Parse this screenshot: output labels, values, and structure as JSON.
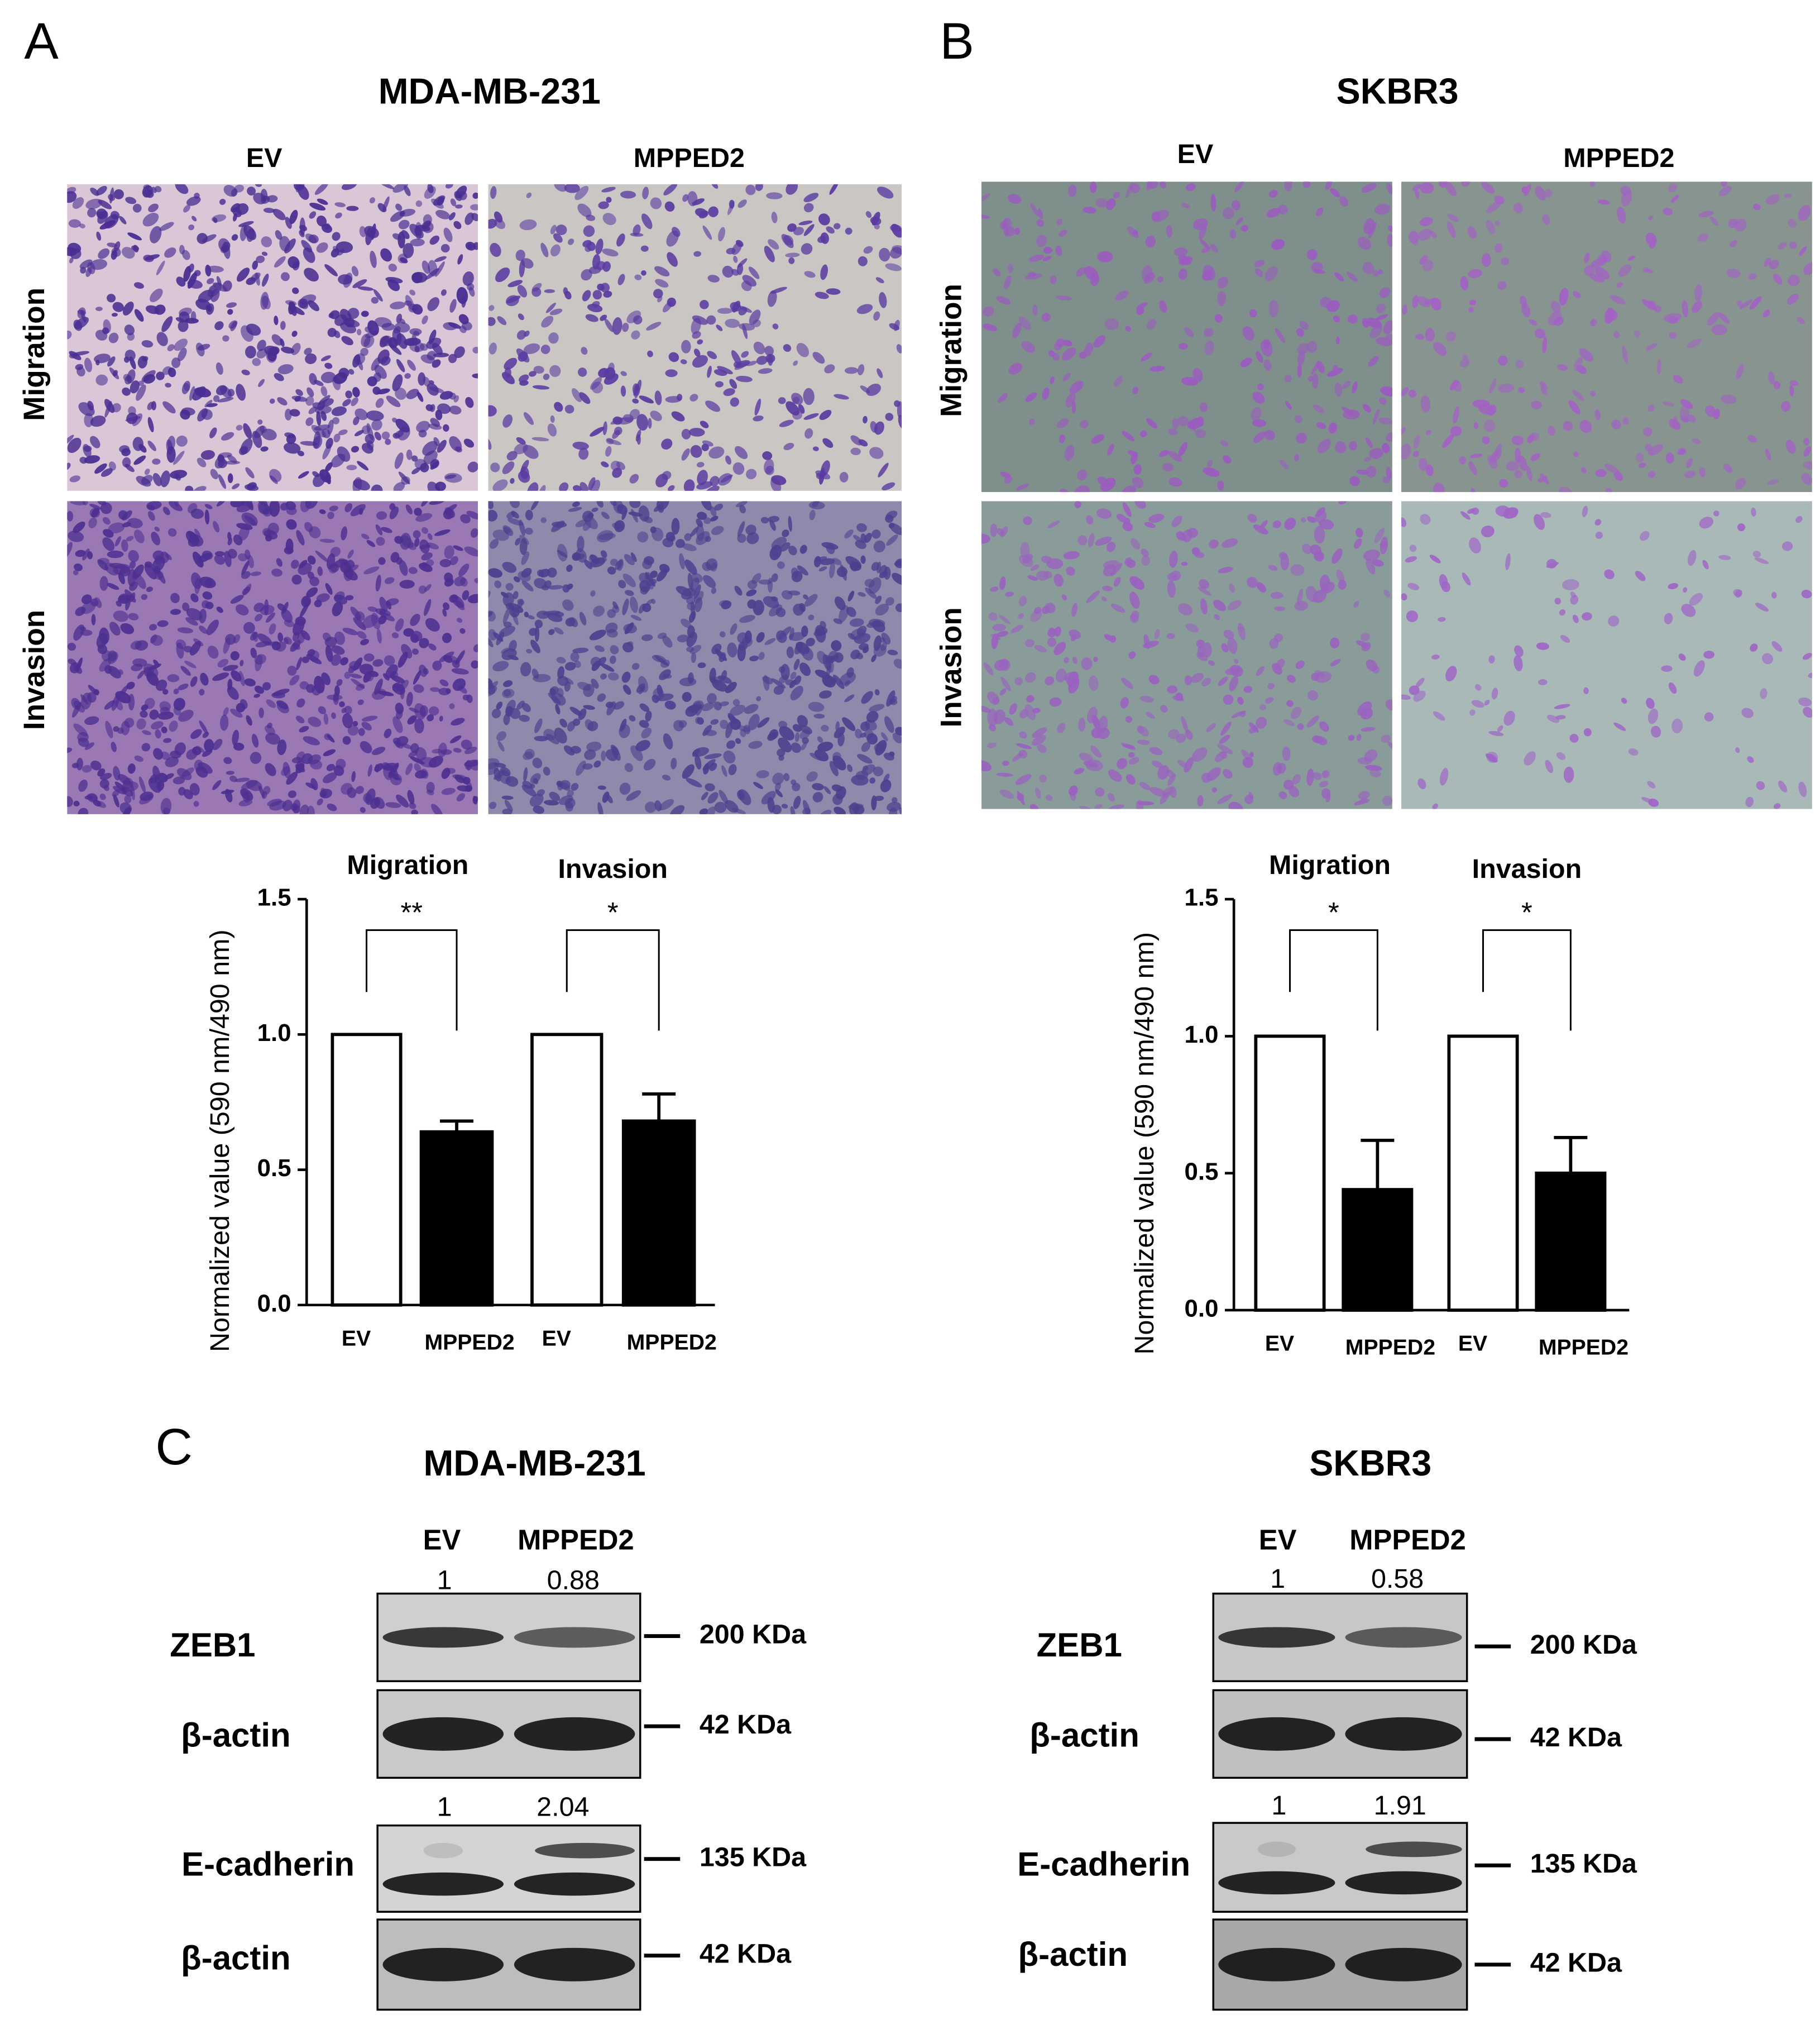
{
  "panels": [
    {
      "letter": "A",
      "title": "MDA-MB-231",
      "columns": [
        "EV",
        "MPPED2"
      ],
      "rows": [
        "Migration",
        "Invasion"
      ]
    },
    {
      "letter": "B",
      "title": "SKBR3",
      "columns": [
        "EV",
        "MPPED2"
      ],
      "rows": [
        "Migration",
        "Invasion"
      ]
    }
  ],
  "chart_data": [
    {
      "type": "bar",
      "ylabel": "Normalized value (590 nm/490 nm)",
      "groups": [
        "Migration",
        "Invasion"
      ],
      "significance": [
        "**",
        "*"
      ],
      "categories": [
        "EV",
        "MPPED2",
        "EV",
        "MPPED2"
      ],
      "values": [
        1.0,
        0.64,
        1.0,
        0.68
      ],
      "errors": [
        0,
        0.04,
        0,
        0.1
      ],
      "colors": [
        "#ffffff",
        "#000000",
        "#ffffff",
        "#000000"
      ],
      "ylim": [
        0,
        1.5
      ],
      "yticks": [
        {
          "value": 0,
          "label": "0.0"
        },
        0.5,
        {
          "value": 1,
          "label": "1.0"
        },
        1.5
      ]
    },
    {
      "type": "bar",
      "ylabel": "Normalized value (590 nm/490 nm)",
      "groups": [
        "Migration",
        "Invasion"
      ],
      "significance": [
        "*",
        "*"
      ],
      "categories": [
        "EV",
        "MPPED2",
        "EV",
        "MPPED2"
      ],
      "values": [
        1.0,
        0.44,
        1.0,
        0.5
      ],
      "errors": [
        0,
        0.18,
        0,
        0.13
      ],
      "colors": [
        "#ffffff",
        "#000000",
        "#ffffff",
        "#000000"
      ],
      "ylim": [
        0,
        1.5
      ],
      "yticks": [
        {
          "value": 0,
          "label": "0.0"
        },
        0.5,
        {
          "value": 1,
          "label": "1.0"
        },
        1.5
      ]
    }
  ],
  "blots": {
    "letter": "C",
    "panels": [
      {
        "title": "MDA-MB-231",
        "columns": [
          "EV",
          "MPPED2"
        ],
        "ratios": [
          [
            1,
            0.88
          ],
          [
            1,
            2.04
          ]
        ],
        "rows": [
          {
            "label": "ZEB1",
            "marker": "200 KDa"
          },
          {
            "label": "β-actin",
            "marker": "42 KDa"
          },
          {
            "label": "E-cadherin",
            "marker": "135 KDa"
          },
          {
            "label": "β-actin",
            "marker": "42 KDa"
          }
        ]
      },
      {
        "title": "SKBR3",
        "columns": [
          "EV",
          "MPPED2"
        ],
        "ratios": [
          [
            1,
            0.58
          ],
          [
            1,
            1.91
          ]
        ],
        "rows": [
          {
            "label": "ZEB1",
            "marker": "200 KDa"
          },
          {
            "label": "β-actin",
            "marker": "42 KDa"
          },
          {
            "label": "E-cadherin",
            "marker": "135 KDa"
          },
          {
            "label": "β-actin",
            "marker": "42 KDa"
          }
        ]
      }
    ]
  }
}
